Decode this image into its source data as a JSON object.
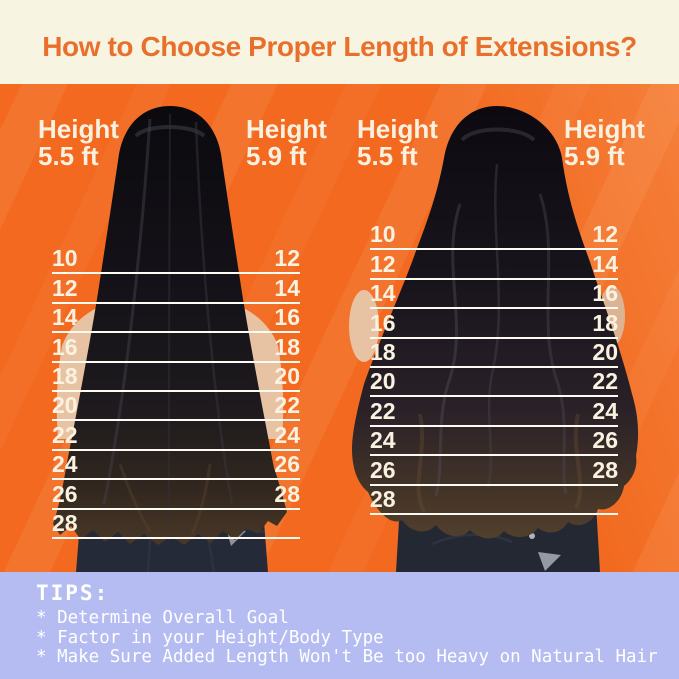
{
  "header": {
    "title": "How to Choose Proper Length of Extensions?"
  },
  "panels": [
    {
      "name": "straight-hair",
      "left_label": {
        "line1": "Height",
        "line2": "5.5 ft"
      },
      "right_label": {
        "line1": "Height",
        "line2": "5.9 ft"
      },
      "rows": [
        {
          "left": "10",
          "right": "12"
        },
        {
          "left": "12",
          "right": "14"
        },
        {
          "left": "14",
          "right": "16"
        },
        {
          "left": "16",
          "right": "18"
        },
        {
          "left": "18",
          "right": "20"
        },
        {
          "left": "20",
          "right": "22"
        },
        {
          "left": "22",
          "right": "24"
        },
        {
          "left": "24",
          "right": "26"
        },
        {
          "left": "26",
          "right": "28"
        },
        {
          "left": "28",
          "right": ""
        }
      ]
    },
    {
      "name": "wavy-hair",
      "left_label": {
        "line1": "Height",
        "line2": "5.5 ft"
      },
      "right_label": {
        "line1": "Height",
        "line2": "5.9 ft"
      },
      "rows": [
        {
          "left": "10",
          "right": "12"
        },
        {
          "left": "12",
          "right": "14"
        },
        {
          "left": "14",
          "right": "16"
        },
        {
          "left": "16",
          "right": "18"
        },
        {
          "left": "18",
          "right": "20"
        },
        {
          "left": "20",
          "right": "22"
        },
        {
          "left": "22",
          "right": "24"
        },
        {
          "left": "24",
          "right": "26"
        },
        {
          "left": "26",
          "right": "28"
        },
        {
          "left": "28",
          "right": ""
        }
      ]
    }
  ],
  "tips": {
    "heading": "TIPS:",
    "items": [
      "* Determine Overall Goal",
      "* Factor in your Height/Body Type",
      "* Make Sure Added Length Won't Be too Heavy on Natural Hair"
    ]
  },
  "colors": {
    "header_bg": "#F7F4E1",
    "title_orange": "#E9702C",
    "background_orange": "#F2691F",
    "cream_text": "#F9F1DF",
    "ruler_line": "#FEFBF2",
    "tips_bg": "#B5BCF1",
    "tips_text": "#FFFFFF"
  }
}
